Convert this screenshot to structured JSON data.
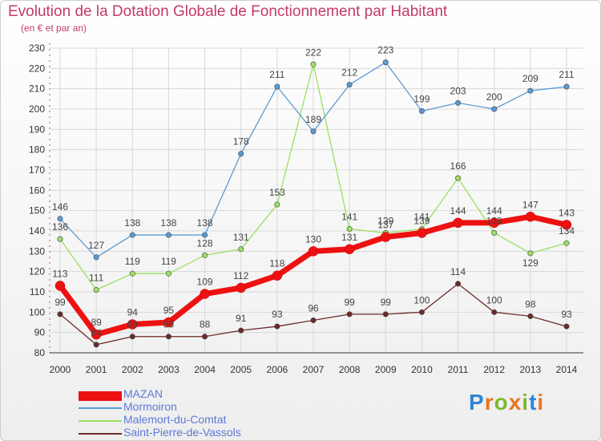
{
  "header": {
    "title": "Evolution de la Dotation Globale de Fonctionnement par Habitant",
    "subtitle": "(en € et par an)"
  },
  "logo": {
    "text": "Proxiti"
  },
  "chart_data": {
    "type": "line",
    "categories": [
      "2000",
      "2001",
      "2002",
      "2003",
      "2004",
      "2005",
      "2006",
      "2007",
      "2008",
      "2009",
      "2010",
      "2011",
      "2012",
      "2013",
      "2014"
    ],
    "ylim": [
      80,
      230
    ],
    "yticks": [
      80,
      90,
      100,
      110,
      120,
      130,
      140,
      150,
      160,
      170,
      180,
      190,
      200,
      210,
      220,
      230
    ],
    "grid": true,
    "legend_position": "bottom-left",
    "series": [
      {
        "name": "MAZAN",
        "color": "#ee1111",
        "values": [
          113,
          89,
          94,
          95,
          109,
          112,
          118,
          130,
          131,
          137,
          139,
          144,
          144,
          147,
          143
        ]
      },
      {
        "name": "Mormoiron",
        "color": "#5b9bd5",
        "values": [
          146,
          127,
          138,
          138,
          138,
          178,
          211,
          189,
          212,
          223,
          199,
          203,
          200,
          209,
          211
        ]
      },
      {
        "name": "Malemort-du-Comtat",
        "color": "#9be060",
        "values": [
          136,
          111,
          119,
          119,
          128,
          131,
          153,
          222,
          141,
          139,
          141,
          166,
          139,
          129,
          134
        ]
      },
      {
        "name": "Saint-Pierre-de-Vassols",
        "color": "#6b2a2a",
        "values": [
          99,
          84,
          88,
          88,
          88,
          91,
          93,
          96,
          99,
          99,
          100,
          114,
          100,
          98,
          93
        ]
      }
    ]
  }
}
